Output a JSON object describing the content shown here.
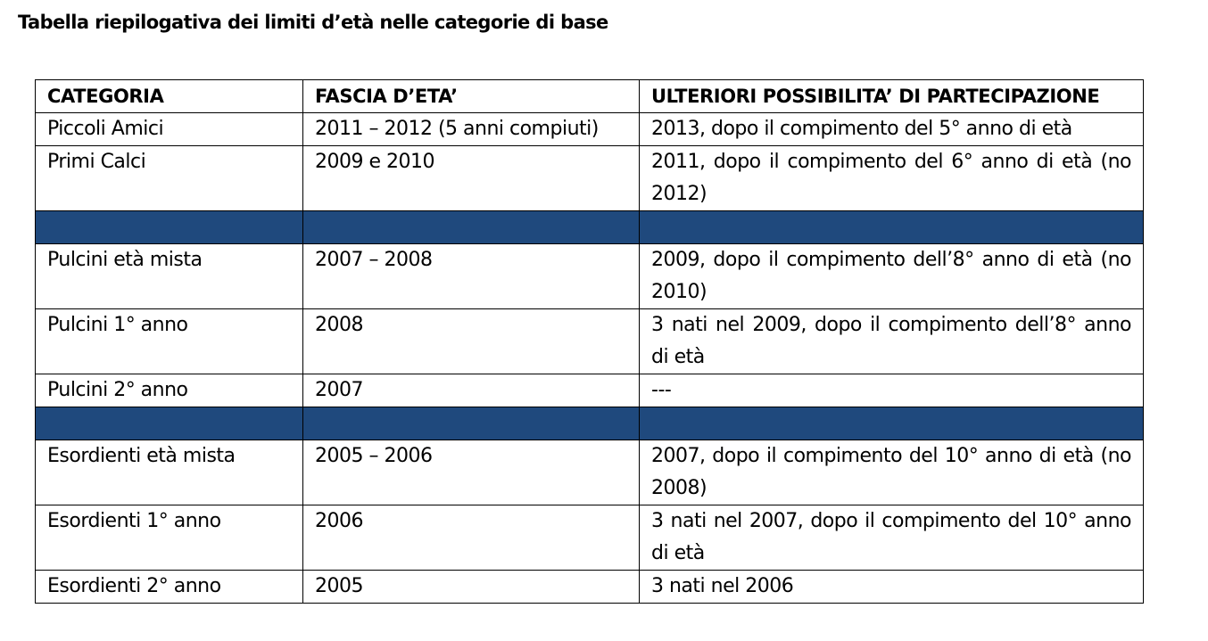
{
  "document": {
    "title": "Tabella riepilogativa dei limiti d’età nelle categorie di base"
  },
  "table": {
    "headers": [
      "CATEGORIA",
      "FASCIA D’ETA’",
      "ULTERIORI POSSIBILITA’ DI PARTECIPAZIONE"
    ],
    "divider_color": "#1f497d",
    "groups": [
      {
        "rows": [
          [
            "Piccoli Amici",
            "2011 – 2012 (5 anni compiuti)",
            "2013, dopo il compimento del 5° anno di età"
          ],
          [
            "Primi Calci",
            "2009 e 2010",
            "2011, dopo il compimento del 6° anno di età (no 2012)"
          ]
        ]
      },
      {
        "rows": [
          [
            "Pulcini età mista",
            "2007 – 2008",
            "2009, dopo il compimento dell’8° anno di età (no 2010)"
          ],
          [
            "Pulcini 1° anno",
            "2008",
            "3 nati nel 2009, dopo il compimento dell’8° anno di età"
          ],
          [
            "Pulcini 2° anno",
            "2007",
            "---"
          ]
        ]
      },
      {
        "rows": [
          [
            "Esordienti età mista",
            "2005 – 2006",
            "2007, dopo il compimento del 10° anno di età (no 2008)"
          ],
          [
            "Esordienti 1° anno",
            "2006",
            "3 nati nel 2007, dopo il compimento del 10° anno di età"
          ],
          [
            "Esordienti 2° anno",
            "2005",
            "3 nati nel 2006"
          ]
        ]
      }
    ]
  }
}
